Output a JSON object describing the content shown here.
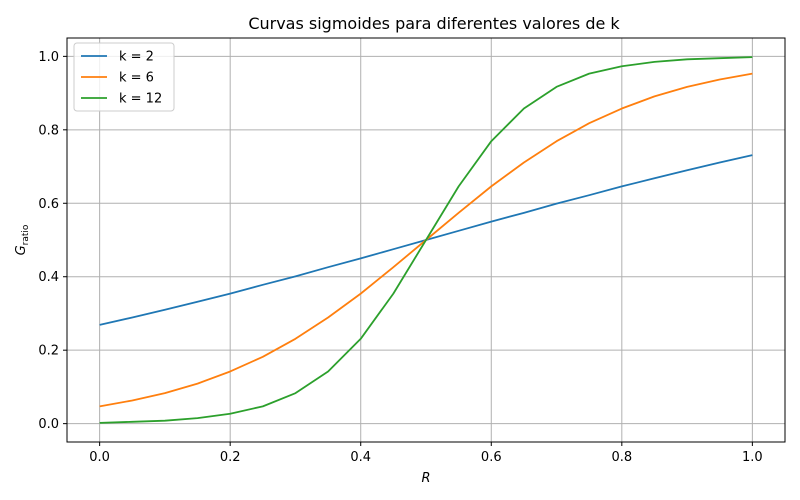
{
  "chart_data": {
    "type": "line",
    "title": "Curvas sigmoides para diferentes valores de k",
    "xlabel": "R",
    "ylabel_main": "G",
    "ylabel_sub": "ratio",
    "xlim": [
      -0.05,
      1.05
    ],
    "ylim": [
      -0.05,
      1.05
    ],
    "xticks": [
      "0.0",
      "0.2",
      "0.4",
      "0.6",
      "0.8",
      "1.0"
    ],
    "yticks": [
      "0.0",
      "0.2",
      "0.4",
      "0.6",
      "0.8",
      "1.0"
    ],
    "grid": true,
    "legend_position": "top-left",
    "x": [
      0.0,
      0.05,
      0.1,
      0.15,
      0.2,
      0.25,
      0.3,
      0.35,
      0.4,
      0.45,
      0.5,
      0.55,
      0.6,
      0.65,
      0.7,
      0.75,
      0.8,
      0.85,
      0.9,
      0.95,
      1.0
    ],
    "series": [
      {
        "name": "k = 2",
        "color": "#1f77b4",
        "values": [
          0.269,
          0.289,
          0.31,
          0.332,
          0.354,
          0.378,
          0.401,
          0.426,
          0.45,
          0.475,
          0.5,
          0.525,
          0.55,
          0.574,
          0.599,
          0.622,
          0.646,
          0.668,
          0.69,
          0.711,
          0.731
        ]
      },
      {
        "name": "k = 6",
        "color": "#ff7f0e",
        "values": [
          0.047,
          0.063,
          0.083,
          0.109,
          0.142,
          0.182,
          0.231,
          0.289,
          0.354,
          0.426,
          0.5,
          0.574,
          0.646,
          0.711,
          0.769,
          0.818,
          0.858,
          0.891,
          0.917,
          0.937,
          0.953
        ]
      },
      {
        "name": "k = 12",
        "color": "#2ca02c",
        "values": [
          0.002,
          0.005,
          0.008,
          0.015,
          0.027,
          0.047,
          0.083,
          0.142,
          0.231,
          0.354,
          0.5,
          0.646,
          0.769,
          0.858,
          0.917,
          0.953,
          0.973,
          0.985,
          0.992,
          0.995,
          0.998
        ]
      }
    ]
  }
}
